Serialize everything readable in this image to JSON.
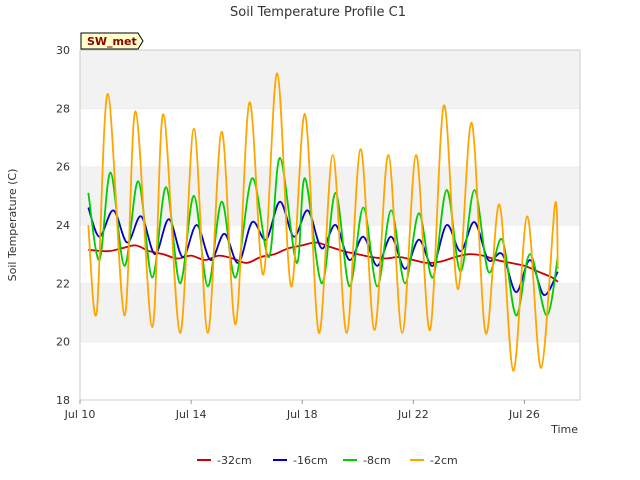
{
  "chart_data": {
    "type": "line",
    "title": "Soil Temperature Profile C1",
    "xlabel": "Time",
    "ylabel": "Soil Temperature (C)",
    "ylim": [
      18,
      30
    ],
    "xlim": [
      0,
      18
    ],
    "y_ticks": [
      18,
      20,
      22,
      24,
      26,
      28,
      30
    ],
    "x_ticks": [
      {
        "value": 0,
        "label": "Jul 10"
      },
      {
        "value": 4,
        "label": "Jul 14"
      },
      {
        "value": 8,
        "label": "Jul 18"
      },
      {
        "value": 12,
        "label": "Jul 22"
      },
      {
        "value": 16,
        "label": "Jul 26"
      }
    ],
    "x_unit": "days since Jul 10",
    "grid": "horizontal bands",
    "legend_position": "bottom",
    "badge": "SW_met",
    "series": [
      {
        "name": "-32cm",
        "color": "#cc0000",
        "points": [
          [
            0.3,
            23.15
          ],
          [
            1,
            23.1
          ],
          [
            1.5,
            23.2
          ],
          [
            2,
            23.3
          ],
          [
            2.5,
            23.1
          ],
          [
            3,
            23.0
          ],
          [
            3.5,
            22.85
          ],
          [
            4,
            22.95
          ],
          [
            4.5,
            22.8
          ],
          [
            5,
            22.95
          ],
          [
            5.5,
            22.85
          ],
          [
            6,
            22.7
          ],
          [
            6.5,
            22.9
          ],
          [
            7,
            23.0
          ],
          [
            7.5,
            23.2
          ],
          [
            8,
            23.3
          ],
          [
            8.5,
            23.4
          ],
          [
            9,
            23.25
          ],
          [
            9.5,
            23.1
          ],
          [
            10,
            23.0
          ],
          [
            10.5,
            22.9
          ],
          [
            11,
            22.85
          ],
          [
            11.5,
            22.9
          ],
          [
            12,
            22.8
          ],
          [
            12.5,
            22.7
          ],
          [
            13,
            22.75
          ],
          [
            13.5,
            22.9
          ],
          [
            14,
            23.0
          ],
          [
            14.5,
            22.95
          ],
          [
            15,
            22.8
          ],
          [
            15.5,
            22.7
          ],
          [
            16,
            22.6
          ],
          [
            16.5,
            22.4
          ],
          [
            17,
            22.2
          ],
          [
            17.2,
            22.05
          ]
        ]
      },
      {
        "name": "-16cm",
        "color": "#0000cc",
        "points": [
          [
            0.3,
            24.6
          ],
          [
            0.7,
            23.6
          ],
          [
            1.2,
            24.5
          ],
          [
            1.7,
            23.4
          ],
          [
            2.2,
            24.3
          ],
          [
            2.7,
            23.0
          ],
          [
            3.2,
            24.2
          ],
          [
            3.7,
            22.9
          ],
          [
            4.2,
            24.0
          ],
          [
            4.7,
            22.8
          ],
          [
            5.2,
            23.7
          ],
          [
            5.7,
            22.7
          ],
          [
            6.2,
            24.1
          ],
          [
            6.7,
            23.5
          ],
          [
            7.2,
            24.8
          ],
          [
            7.7,
            23.6
          ],
          [
            8.2,
            24.5
          ],
          [
            8.7,
            23.2
          ],
          [
            9.2,
            24.0
          ],
          [
            9.7,
            22.8
          ],
          [
            10.2,
            23.6
          ],
          [
            10.7,
            22.6
          ],
          [
            11.2,
            23.6
          ],
          [
            11.7,
            22.5
          ],
          [
            12.2,
            23.5
          ],
          [
            12.7,
            22.6
          ],
          [
            13.2,
            24.0
          ],
          [
            13.7,
            23.1
          ],
          [
            14.2,
            24.1
          ],
          [
            14.7,
            22.8
          ],
          [
            15.2,
            23.0
          ],
          [
            15.7,
            21.7
          ],
          [
            16.2,
            22.8
          ],
          [
            16.7,
            21.6
          ],
          [
            17.2,
            22.4
          ]
        ]
      },
      {
        "name": "-8cm",
        "color": "#00cc00",
        "points": [
          [
            0.3,
            25.1
          ],
          [
            0.7,
            22.8
          ],
          [
            1.1,
            25.8
          ],
          [
            1.6,
            22.6
          ],
          [
            2.1,
            25.5
          ],
          [
            2.6,
            22.2
          ],
          [
            3.1,
            25.3
          ],
          [
            3.6,
            22.0
          ],
          [
            4.1,
            25.0
          ],
          [
            4.6,
            21.9
          ],
          [
            5.1,
            24.8
          ],
          [
            5.6,
            22.2
          ],
          [
            6.2,
            25.6
          ],
          [
            6.8,
            22.9
          ],
          [
            7.2,
            26.3
          ],
          [
            7.8,
            22.7
          ],
          [
            8.1,
            25.6
          ],
          [
            8.7,
            22.0
          ],
          [
            9.2,
            25.1
          ],
          [
            9.7,
            21.9
          ],
          [
            10.2,
            24.6
          ],
          [
            10.7,
            21.9
          ],
          [
            11.2,
            24.5
          ],
          [
            11.7,
            22.0
          ],
          [
            12.2,
            24.4
          ],
          [
            12.7,
            22.2
          ],
          [
            13.2,
            25.2
          ],
          [
            13.7,
            22.4
          ],
          [
            14.2,
            25.2
          ],
          [
            14.7,
            22.4
          ],
          [
            15.2,
            23.5
          ],
          [
            15.7,
            20.9
          ],
          [
            16.2,
            23.0
          ],
          [
            16.8,
            20.9
          ],
          [
            17.2,
            22.9
          ]
        ]
      },
      {
        "name": "-2cm",
        "color": "#ffa500",
        "points": [
          [
            0.3,
            24.0
          ],
          [
            0.6,
            21.0
          ],
          [
            1.0,
            28.5
          ],
          [
            1.6,
            20.9
          ],
          [
            2.0,
            27.9
          ],
          [
            2.6,
            20.5
          ],
          [
            3.0,
            27.8
          ],
          [
            3.6,
            20.3
          ],
          [
            4.1,
            27.3
          ],
          [
            4.6,
            20.3
          ],
          [
            5.1,
            27.2
          ],
          [
            5.6,
            20.6
          ],
          [
            6.1,
            28.2
          ],
          [
            6.6,
            22.3
          ],
          [
            7.1,
            29.2
          ],
          [
            7.6,
            21.9
          ],
          [
            8.1,
            27.8
          ],
          [
            8.6,
            20.3
          ],
          [
            9.1,
            26.4
          ],
          [
            9.6,
            20.3
          ],
          [
            10.1,
            26.6
          ],
          [
            10.6,
            20.4
          ],
          [
            11.1,
            26.4
          ],
          [
            11.6,
            20.3
          ],
          [
            12.1,
            26.4
          ],
          [
            12.6,
            20.4
          ],
          [
            13.1,
            28.1
          ],
          [
            13.6,
            21.8
          ],
          [
            14.1,
            27.5
          ],
          [
            14.6,
            20.3
          ],
          [
            15.1,
            24.7
          ],
          [
            15.6,
            19.0
          ],
          [
            16.1,
            24.3
          ],
          [
            16.6,
            19.1
          ],
          [
            17.1,
            24.7
          ],
          [
            17.2,
            22.5
          ]
        ]
      }
    ]
  }
}
